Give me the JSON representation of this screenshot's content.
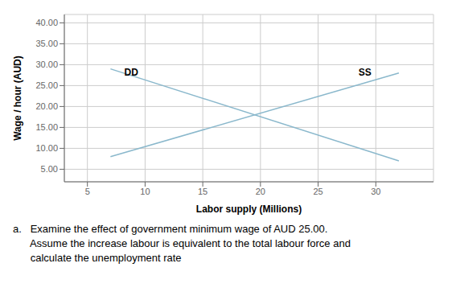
{
  "chart_data": {
    "type": "line",
    "xlabel": "Labor supply (Millions)",
    "ylabel": "Wage / hour (AUD)",
    "xlim": [
      3,
      35
    ],
    "ylim": [
      2,
      42
    ],
    "xticks": [
      5,
      10,
      15,
      20,
      25,
      30
    ],
    "yticks": [
      {
        "value": 5.0,
        "label": "5.00"
      },
      {
        "value": 10.0,
        "label": "10.00"
      },
      {
        "value": 15.0,
        "label": "15.00"
      },
      {
        "value": 20.0,
        "label": "20.00"
      },
      {
        "value": 25.0,
        "label": "25.00"
      },
      {
        "value": 30.0,
        "label": "30.00"
      },
      {
        "value": 35.0,
        "label": "35.00"
      },
      {
        "value": 40.0,
        "label": "40.00"
      }
    ],
    "grid": true,
    "series": [
      {
        "x": [
          7,
          32
        ],
        "values": [
          29,
          7
        ],
        "color": "#8ab8cc"
      },
      {
        "x": [
          7,
          32
        ],
        "values": [
          8,
          28
        ],
        "color": "#8ab8cc"
      }
    ],
    "annotations": [
      {
        "text": "DD",
        "x": 8.2,
        "y": 28.2
      },
      {
        "text": "SS",
        "x": 28.5,
        "y": 28.2
      },
      "a.   Examine the effect of government minimum wage of AUD 25.00.",
      "      Assume the increase labour is equivalent to the total labour force and",
      "      calculate the unemployment rate"
    ]
  }
}
